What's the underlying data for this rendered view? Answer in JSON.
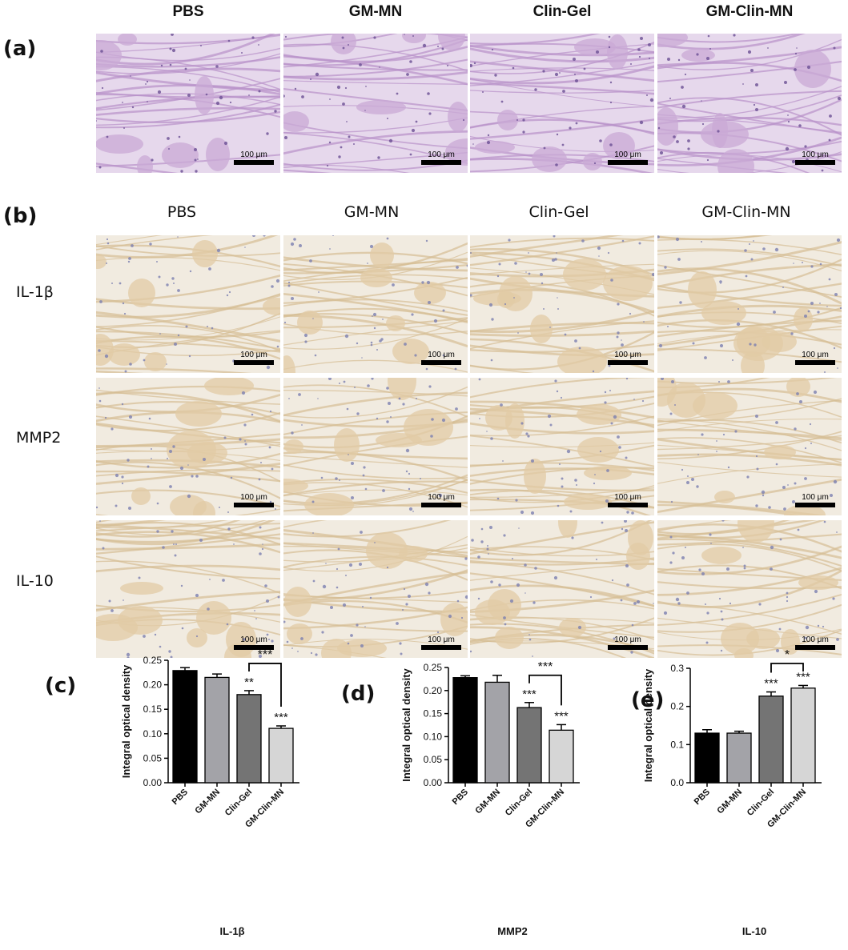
{
  "panels": {
    "a": "(a)",
    "b": "(b)",
    "c": "(c)",
    "d": "(d)",
    "e": "(e)"
  },
  "groups": [
    "PBS",
    "GM-MN",
    "Clin-Gel",
    "GM-Clin-MN"
  ],
  "markers": [
    "IL-1β",
    "MMP2",
    "IL-10"
  ],
  "scale_bar_label": "100 μm",
  "he_tint": "#c9a9d6",
  "ihc_tint": "#e2cba6",
  "chart_data": [
    {
      "type": "bar",
      "panel": "(c)",
      "categories": [
        "PBS",
        "GM-MN",
        "Clin-Gel",
        "GM-Clin-MN"
      ],
      "values": [
        0.229,
        0.215,
        0.18,
        0.111
      ],
      "errors": [
        0.006,
        0.007,
        0.008,
        0.005
      ],
      "colors": [
        "#000000",
        "#a3a3a8",
        "#747474",
        "#d6d6d6"
      ],
      "ylabel": "Integral optical density",
      "xlabel": "IL-1β",
      "ylim": [
        0,
        0.25
      ],
      "yticks": [
        "0.00",
        "0.05",
        "0.10",
        "0.15",
        "0.20",
        "0.25"
      ],
      "bar_sig": [
        "",
        "",
        "**",
        "***"
      ],
      "bracket": {
        "from": 2,
        "to": 3,
        "label": "***"
      }
    },
    {
      "type": "bar",
      "panel": "(d)",
      "categories": [
        "PBS",
        "GM-MN",
        "Clin-Gel",
        "GM-Clin-MN"
      ],
      "values": [
        0.228,
        0.218,
        0.163,
        0.114
      ],
      "errors": [
        0.004,
        0.015,
        0.011,
        0.012
      ],
      "colors": [
        "#000000",
        "#a3a3a8",
        "#747474",
        "#d6d6d6"
      ],
      "ylabel": "Integral optical density",
      "xlabel": "MMP2",
      "ylim": [
        0,
        0.25
      ],
      "yticks": [
        "0.00",
        "0.05",
        "0.10",
        "0.15",
        "0.20",
        "0.25"
      ],
      "bar_sig": [
        "",
        "",
        "***",
        "***"
      ],
      "bracket": {
        "from": 2,
        "to": 3,
        "label": "***"
      }
    },
    {
      "type": "bar",
      "panel": "(e)",
      "categories": [
        "PBS",
        "GM-MN",
        "Clin-Gel",
        "GM-Clin-MN"
      ],
      "values": [
        0.13,
        0.13,
        0.227,
        0.248
      ],
      "errors": [
        0.009,
        0.005,
        0.011,
        0.007
      ],
      "colors": [
        "#000000",
        "#a3a3a8",
        "#747474",
        "#d6d6d6"
      ],
      "ylabel": "Integral optical density",
      "xlabel": "IL-10",
      "ylim": [
        0,
        0.3
      ],
      "yticks": [
        "0.0",
        "0.1",
        "0.2",
        "0.3"
      ],
      "bar_sig": [
        "",
        "",
        "***",
        "***"
      ],
      "bracket": {
        "from": 2,
        "to": 3,
        "label": "*"
      }
    }
  ]
}
